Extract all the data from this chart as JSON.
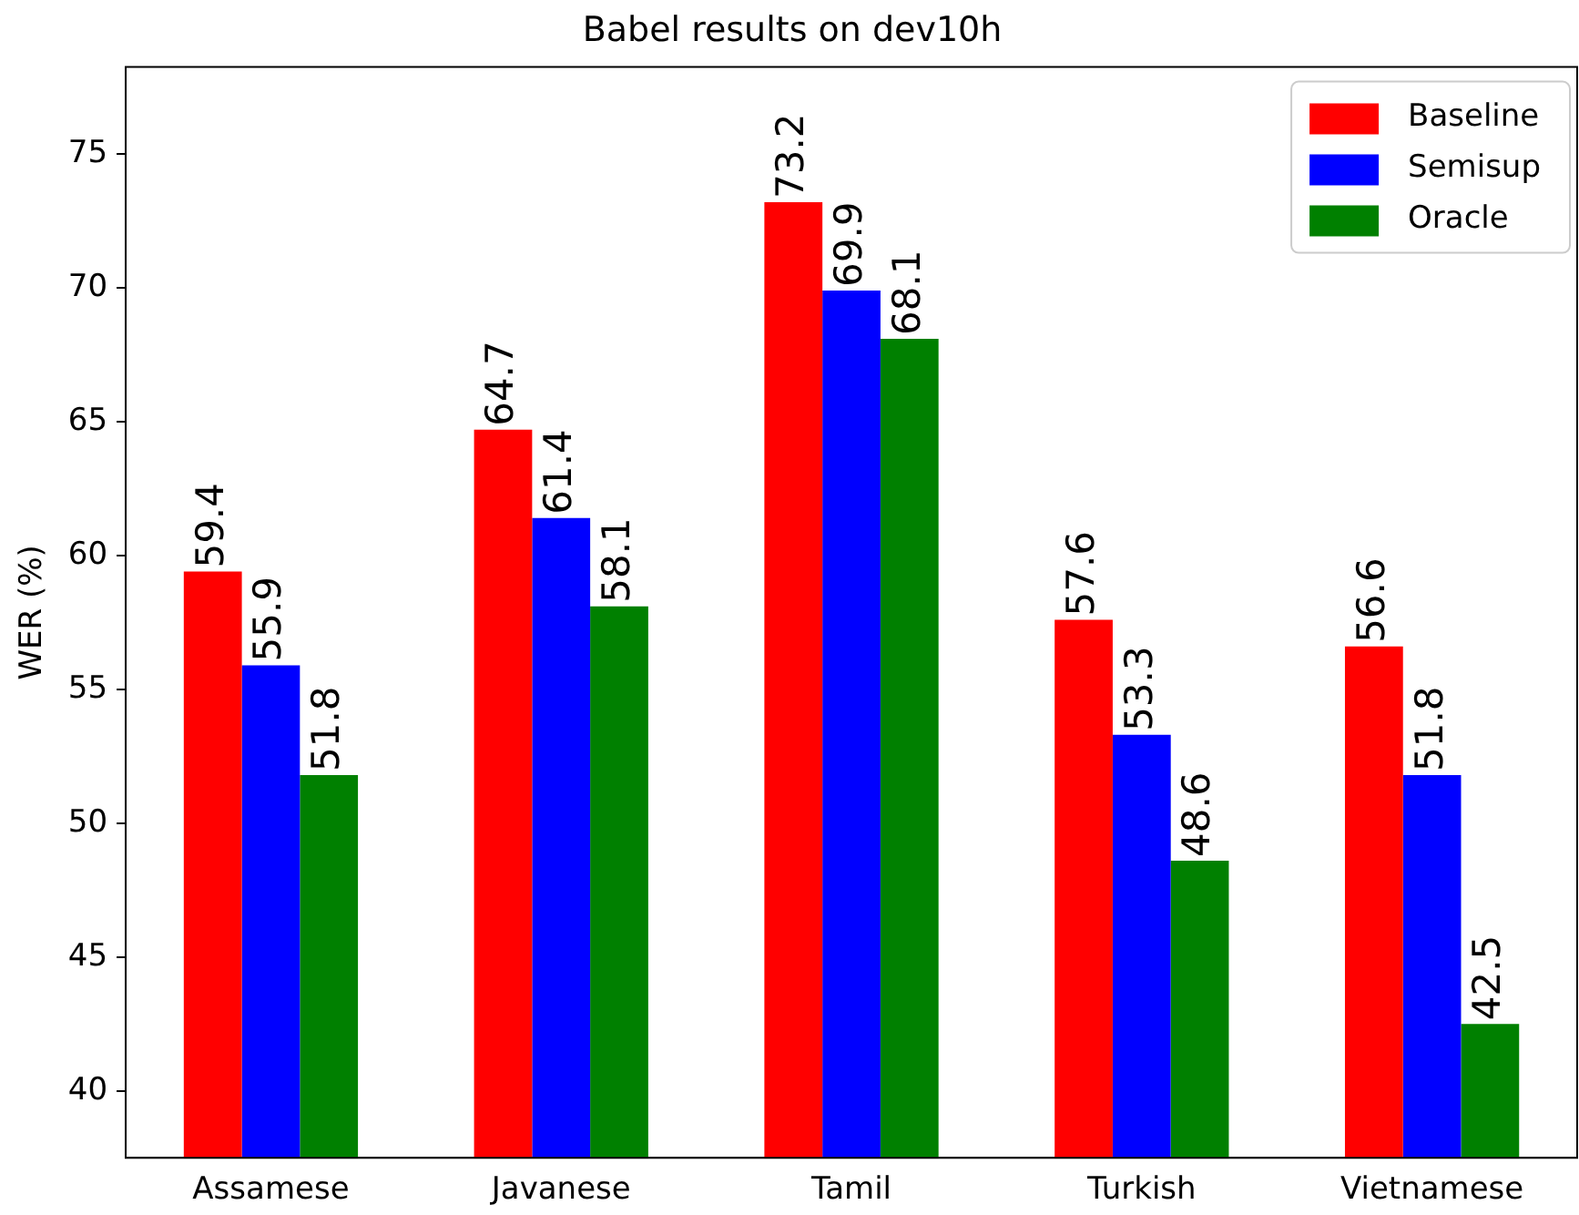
{
  "chart_data": {
    "type": "bar",
    "title": "Babel results on dev10h",
    "ylabel": "WER (%)",
    "categories": [
      "Assamese",
      "Javanese",
      "Tamil",
      "Turkish",
      "Vietnamese"
    ],
    "series": [
      {
        "name": "Baseline",
        "color": "#ff0000",
        "values": [
          59.4,
          64.7,
          73.2,
          57.6,
          56.6
        ]
      },
      {
        "name": "Semisup",
        "color": "#0000ff",
        "values": [
          55.9,
          61.4,
          69.9,
          53.3,
          51.8
        ]
      },
      {
        "name": "Oracle",
        "color": "#008000",
        "values": [
          51.8,
          58.1,
          68.1,
          48.6,
          42.5
        ]
      }
    ],
    "ylim": [
      37.5,
      78.25
    ],
    "yticks": [
      40,
      45,
      50,
      55,
      60,
      65,
      70,
      75
    ],
    "grid": false,
    "legend": "top right",
    "data_labels": true
  }
}
